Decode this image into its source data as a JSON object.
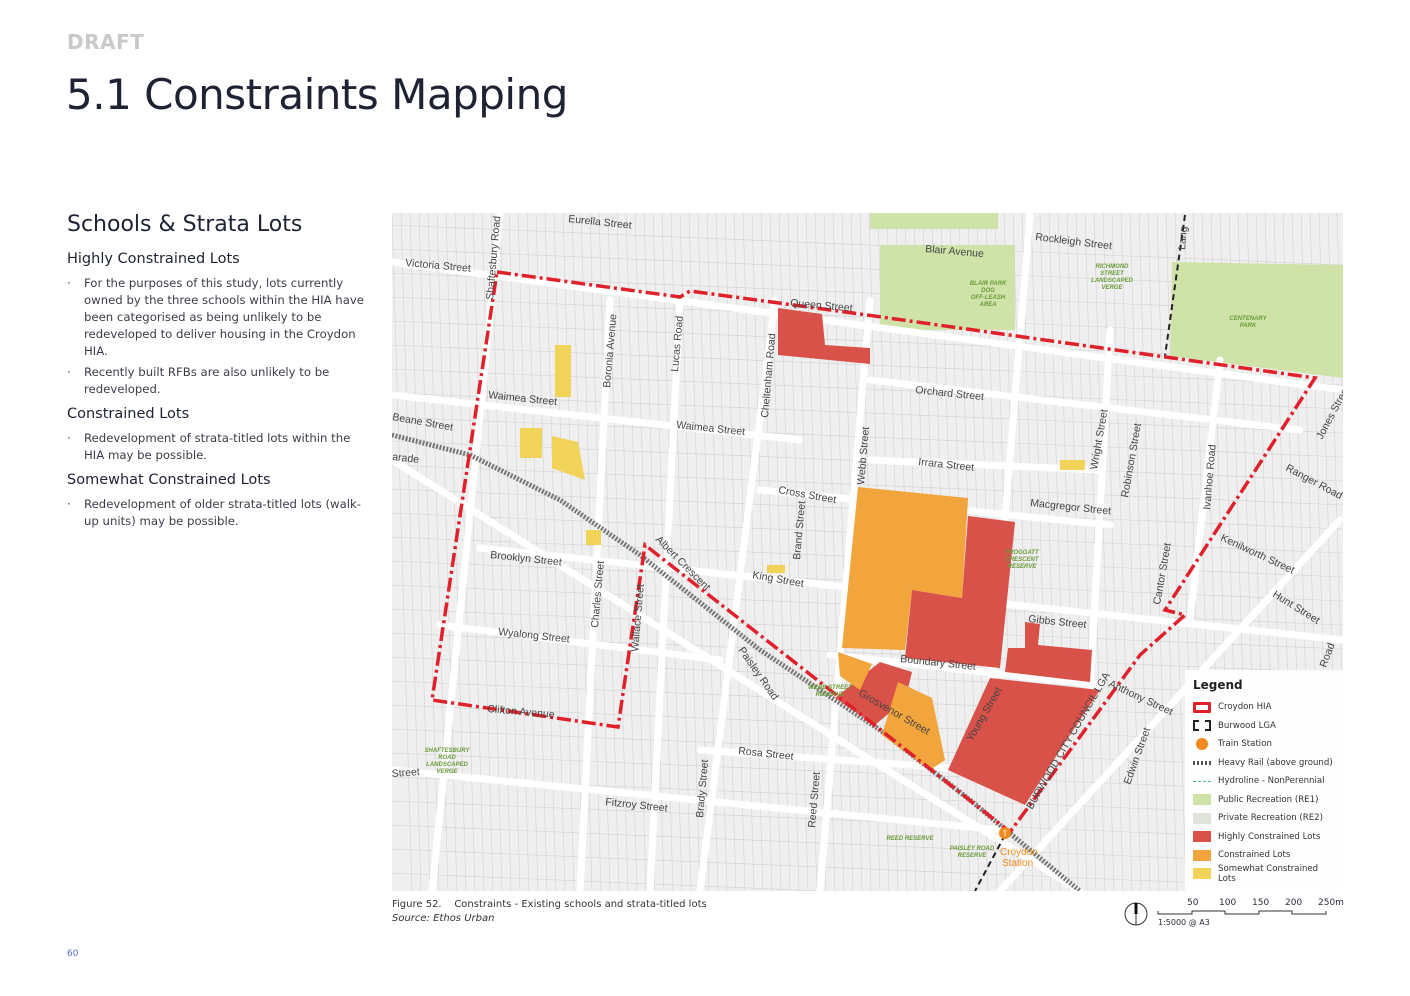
{
  "header": {
    "draft": "DRAFT",
    "title": "5.1 Constraints Mapping"
  },
  "sidebar": {
    "heading": "Schools & Strata Lots",
    "sections": [
      {
        "title": "Highly Constrained Lots",
        "bullets": [
          "For the purposes of this study, lots currently owned by the three schools within the HIA have been categorised as being unlikely to be redeveloped to deliver housing in the Croydon HIA.",
          "Recently built RFBs are also unlikely to be redeveloped."
        ]
      },
      {
        "title": "Constrained Lots",
        "bullets": [
          "Redevelopment of strata-titled lots within the HIA may be possible."
        ]
      },
      {
        "title": "Somewhat Constrained Lots",
        "bullets": [
          "Redevelopment of older strata-titled lots (walk-up units) may be possible."
        ]
      }
    ]
  },
  "map": {
    "colors": {
      "hia": "#e0202a",
      "highly": "#d9524a",
      "constrained": "#f2a53c",
      "somewhat": "#f1d35a",
      "public_rec": "#cfe3a8",
      "private_rec": "#dfe3dc",
      "station": "#f08a1c"
    },
    "street_labels": [
      "Eurella Street",
      "Victoria Street",
      "Shaftesbury Road",
      "Blair Avenue",
      "Rockleigh Street",
      "Queen Street",
      "Orchard Street",
      "Irrara Street",
      "Waimea Street",
      "Waimea Street",
      "Boronia Avenue",
      "Lucas Road",
      "Cheltenham Road",
      "Webb Street",
      "Cross Street",
      "Macgregor Street",
      "Wright Street",
      "Robinson Street",
      "Ivanhoe Road",
      "Ranger Road",
      "Jones Street",
      "Kenilworth Street",
      "Brand Street",
      "King Street",
      "Albert Crescent",
      "Brooklyn Street",
      "Charles Street",
      "Wallace Street",
      "Wyalong Street",
      "Gibbs Street",
      "Cantor Street",
      "Hunt Street",
      "Boundary Street",
      "Paisley Road",
      "Young Street",
      "Grosvenor Street",
      "Anthony Street",
      "Clifton Avenue",
      "Rosa Street",
      "Brady Street",
      "Reed Street",
      "Edwin Street",
      "Fitzroy Street",
      "Beane Street",
      "arade",
      "Street",
      "BURWOOD CITY COUNCIL LGA",
      "Road",
      "Lang"
    ],
    "green_labels": [
      "BLAIR PARK",
      "DOG",
      "OFF-LEASH",
      "AREA",
      "RICHMOND",
      "STREET",
      "LANDSCAPED",
      "VERGE",
      "CENTENARY",
      "PARK",
      "FROGGATT",
      "CRESCENT",
      "RESERVE",
      "WEBB STREET",
      "RESERVE",
      "SHAFTESBURY",
      "ROAD",
      "LANDSCAPED",
      "VERGE",
      "REED RESERVE",
      "PAISLEY ROAD",
      "RESERVE"
    ],
    "station_label": [
      "Croydon",
      "Station"
    ],
    "legend": {
      "title": "Legend",
      "items": [
        {
          "label": "Croydon HIA",
          "icon": "red-dashed-outline"
        },
        {
          "label": "Burwood LGA",
          "icon": "black-dashed-outline"
        },
        {
          "label": "Train Station",
          "icon": "train-station-icon"
        },
        {
          "label": "Heavy Rail (above ground)",
          "icon": "rail-line"
        },
        {
          "label": "Hydroline - NonPerennial",
          "icon": "hydroline"
        },
        {
          "label": "Public Recreation (RE1)",
          "icon": "public-rec-swatch"
        },
        {
          "label": "Private Recreation (RE2)",
          "icon": "private-rec-swatch"
        },
        {
          "label": "Highly Constrained Lots",
          "icon": "highly-swatch"
        },
        {
          "label": "Constrained Lots",
          "icon": "constrained-swatch"
        },
        {
          "label": "Somewhat Constrained Lots",
          "icon": "somewhat-swatch"
        }
      ]
    }
  },
  "caption": {
    "figure": "Figure 52.    Constraints - Existing schools and strata-titled lots",
    "source": "Source: Ethos Urban"
  },
  "scale": {
    "ticks": [
      "50",
      "100",
      "150",
      "200",
      "250m"
    ],
    "ratio": "1:5000 @ A3"
  },
  "page_number": "60"
}
